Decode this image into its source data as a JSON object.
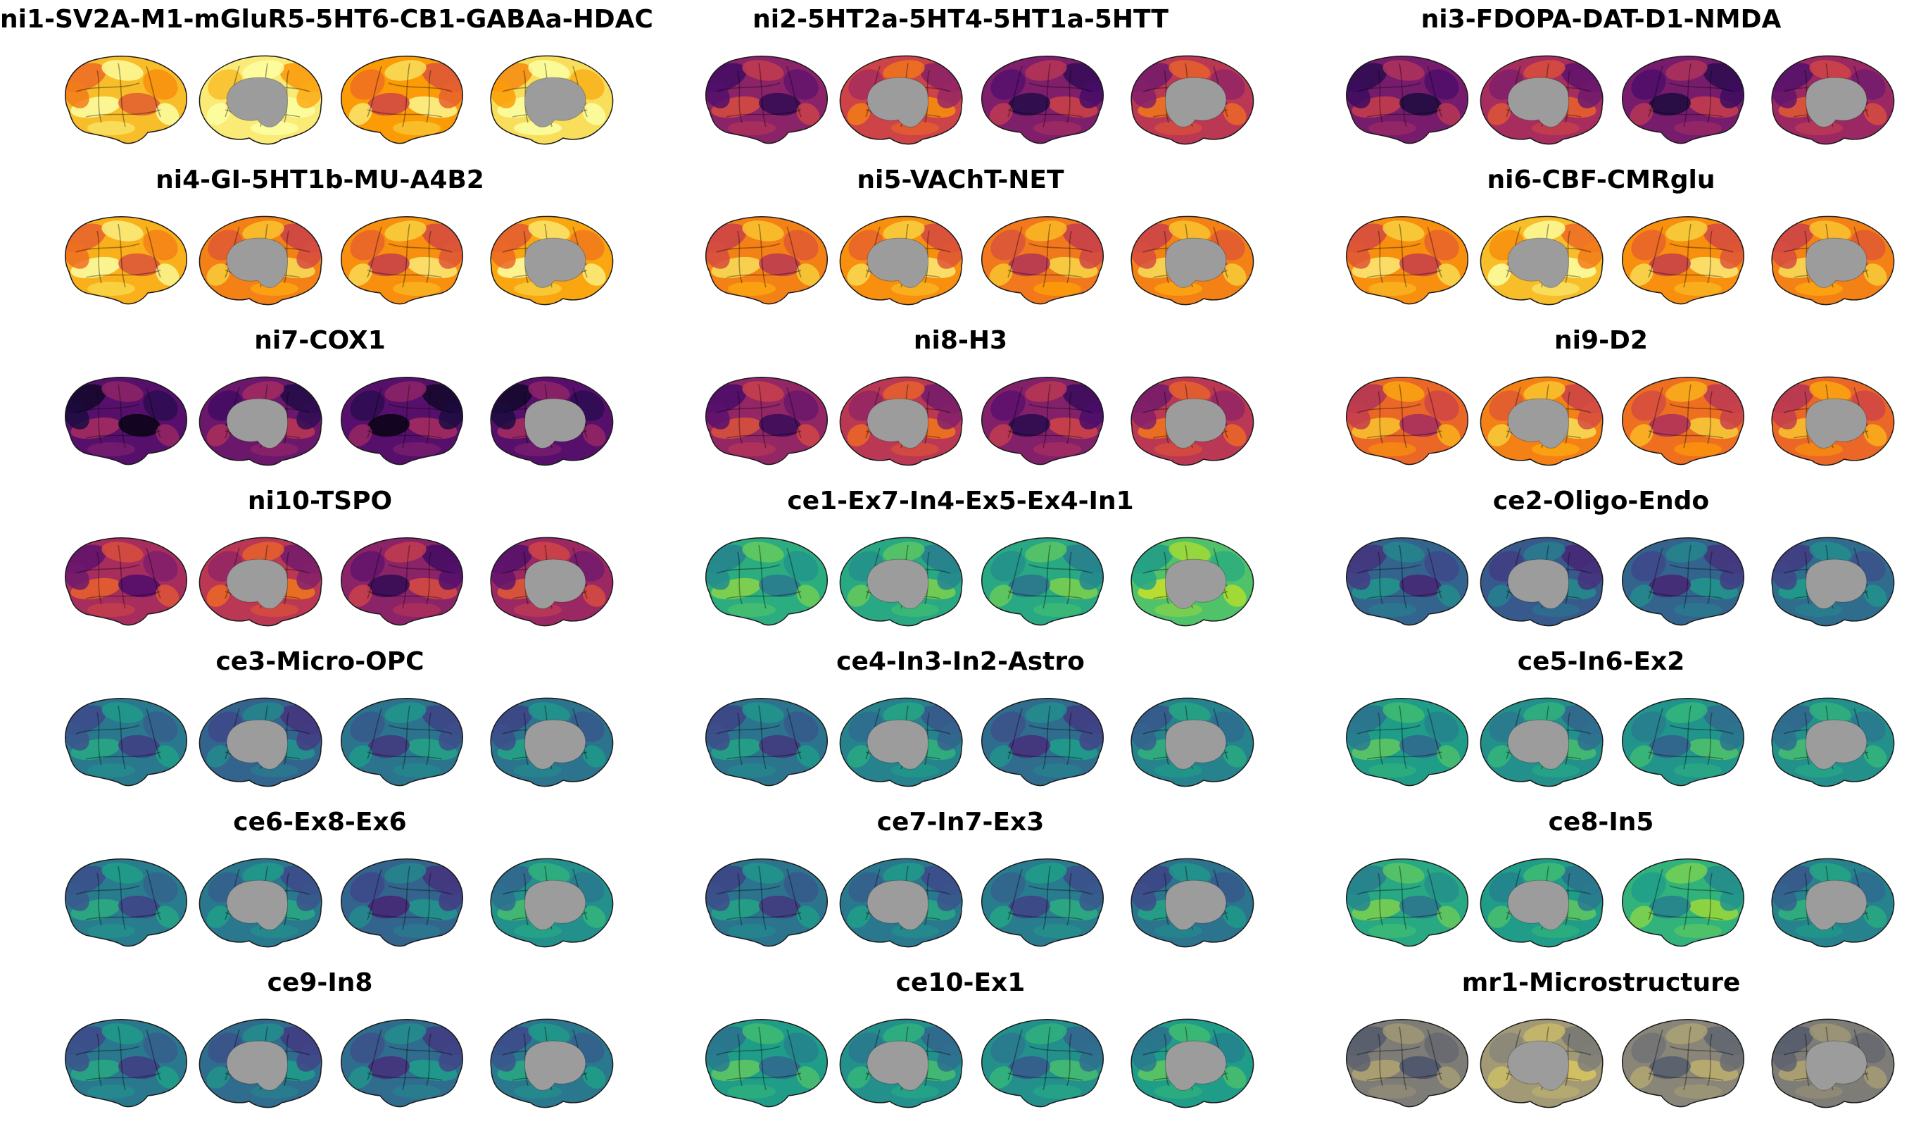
{
  "figure": {
    "panels": [
      {
        "title": "ni1-SV2A-M1-mGluR5-5HT6-CB1-GABAa-HDAC",
        "colormap": "inferno",
        "levels": [
          0.85,
          0.95,
          0.78,
          0.92
        ]
      },
      {
        "title": "ni2-5HT2a-5HT4-5HT1a-5HTT",
        "colormap": "inferno",
        "levels": [
          0.38,
          0.55,
          0.35,
          0.5
        ]
      },
      {
        "title": "ni3-FDOPA-DAT-D1-NMDA",
        "colormap": "inferno",
        "levels": [
          0.33,
          0.45,
          0.33,
          0.42
        ]
      },
      {
        "title": "ni4-GI-5HT1b-MU-A4B2",
        "colormap": "inferno",
        "levels": [
          0.82,
          0.72,
          0.75,
          0.8
        ]
      },
      {
        "title": "ni5-VAChT-NET",
        "colormap": "inferno",
        "levels": [
          0.72,
          0.75,
          0.7,
          0.72
        ]
      },
      {
        "title": "ni6-CBF-CMRglu",
        "colormap": "inferno",
        "levels": [
          0.75,
          0.85,
          0.75,
          0.72
        ]
      },
      {
        "title": "ni7-COX1",
        "colormap": "inferno",
        "levels": [
          0.25,
          0.3,
          0.25,
          0.25
        ]
      },
      {
        "title": "ni8-H3",
        "colormap": "inferno",
        "levels": [
          0.4,
          0.5,
          0.36,
          0.5
        ]
      },
      {
        "title": "ni9-D2",
        "colormap": "inferno",
        "levels": [
          0.66,
          0.72,
          0.68,
          0.66
        ]
      },
      {
        "title": "ni10-TSPO",
        "colormap": "inferno",
        "levels": [
          0.45,
          0.5,
          0.38,
          0.42
        ]
      },
      {
        "title": "ce1-Ex7-In4-Ex5-Ex4-In1",
        "colormap": "viridis",
        "levels": [
          0.62,
          0.6,
          0.6,
          0.72
        ]
      },
      {
        "title": "ce2-Oligo-Endo",
        "colormap": "viridis",
        "levels": [
          0.32,
          0.28,
          0.32,
          0.35
        ]
      },
      {
        "title": "ce3-Micro-OPC",
        "colormap": "viridis",
        "levels": [
          0.4,
          0.32,
          0.38,
          0.38
        ]
      },
      {
        "title": "ce4-In3-In2-Astro",
        "colormap": "viridis",
        "levels": [
          0.38,
          0.45,
          0.35,
          0.45
        ]
      },
      {
        "title": "ce5-In6-Ex2",
        "colormap": "viridis",
        "levels": [
          0.55,
          0.5,
          0.52,
          0.5
        ]
      },
      {
        "title": "ce6-Ex8-Ex6",
        "colormap": "viridis",
        "levels": [
          0.42,
          0.4,
          0.32,
          0.5
        ]
      },
      {
        "title": "ce7-In7-Ex3",
        "colormap": "viridis",
        "levels": [
          0.38,
          0.4,
          0.42,
          0.38
        ]
      },
      {
        "title": "ce8-In5",
        "colormap": "viridis",
        "levels": [
          0.6,
          0.55,
          0.65,
          0.45
        ]
      },
      {
        "title": "ce9-In8",
        "colormap": "viridis",
        "levels": [
          0.4,
          0.35,
          0.35,
          0.4
        ]
      },
      {
        "title": "ce10-Ex1",
        "colormap": "viridis",
        "levels": [
          0.55,
          0.5,
          0.5,
          0.55
        ]
      },
      {
        "title": "mr1-Microstructure",
        "colormap": "cividis",
        "levels": [
          0.5,
          0.65,
          0.55,
          0.5
        ]
      }
    ],
    "colors": {
      "medial_wall": "#9c9c9c",
      "background": "#ffffff",
      "outline": "#1a1a1a"
    }
  }
}
